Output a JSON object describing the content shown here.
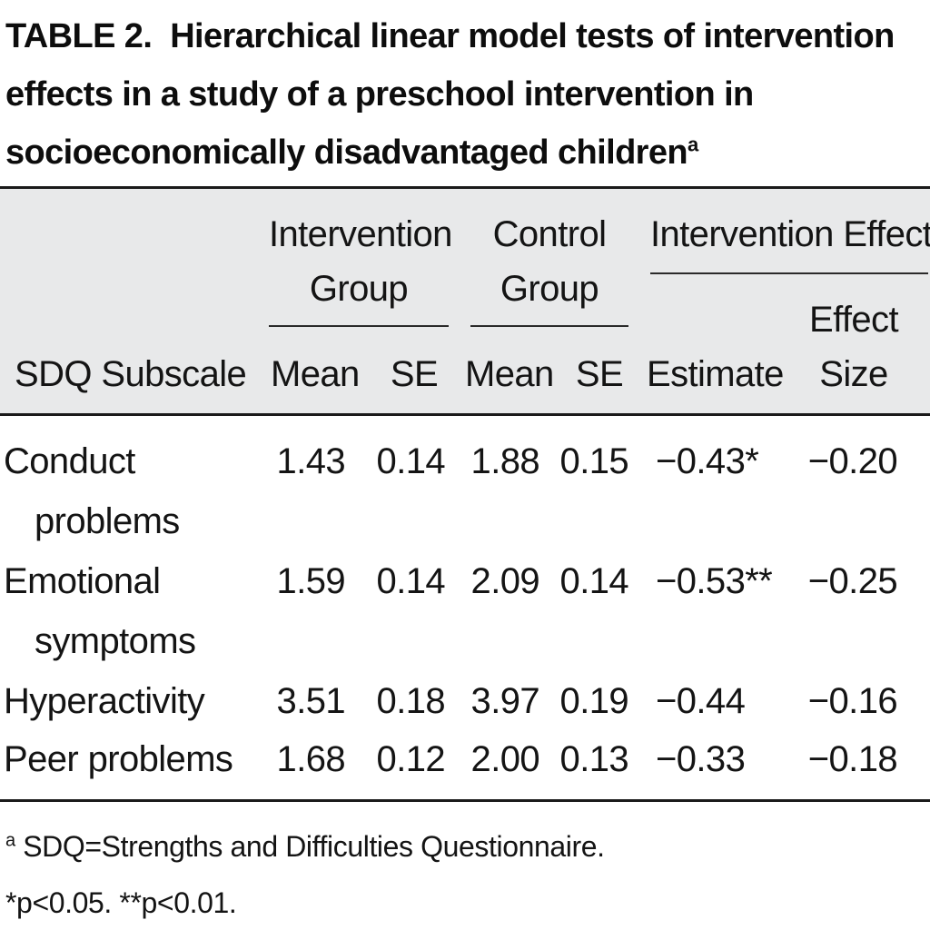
{
  "title": {
    "label": "TABLE 2.",
    "text": "Hierarchical linear model tests of intervention effects in a study of a preschool intervention in socioeconomically disadvantaged children",
    "superscript": "a"
  },
  "header": {
    "row_header": "SDQ Subscale",
    "groups": [
      {
        "line1": "Intervention",
        "line2": "Group"
      },
      {
        "line1": "Control",
        "line2": "Group"
      },
      {
        "line1": "Intervention Effect",
        "line2": ""
      }
    ],
    "columns": [
      "Mean",
      "SE",
      "Mean",
      "SE",
      "Estimate"
    ],
    "effect_size": {
      "line1": "Effect",
      "line2": "Size"
    }
  },
  "rows": [
    {
      "label_line1": "Conduct",
      "label_line2": "problems",
      "int_mean": "1.43",
      "int_se": "0.14",
      "ctl_mean": "1.88",
      "ctl_se": "0.15",
      "estimate": "−0.43*",
      "effect_size": "−0.20"
    },
    {
      "label_line1": "Emotional",
      "label_line2": "symptoms",
      "int_mean": "1.59",
      "int_se": "0.14",
      "ctl_mean": "2.09",
      "ctl_se": "0.14",
      "estimate": "−0.53**",
      "effect_size": "−0.25"
    },
    {
      "label_line1": "Hyperactivity",
      "label_line2": "",
      "int_mean": "3.51",
      "int_se": "0.18",
      "ctl_mean": "3.97",
      "ctl_se": "0.19",
      "estimate": "−0.44",
      "effect_size": "−0.16"
    },
    {
      "label_line1": "Peer problems",
      "label_line2": "",
      "int_mean": "1.68",
      "int_se": "0.12",
      "ctl_mean": "2.00",
      "ctl_se": "0.13",
      "estimate": "−0.33",
      "effect_size": "−0.18"
    }
  ],
  "footnotes": {
    "a_marker": "a",
    "a_text": "SDQ=Strengths and Difficulties Questionnaire.",
    "significance": "*p<0.05. **p<0.01."
  }
}
